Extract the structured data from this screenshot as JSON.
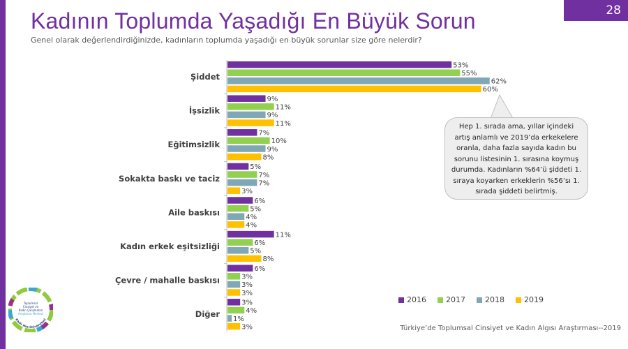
{
  "page_number": "28",
  "title": "Kadının Toplumda Yaşadığı En Büyük Sorun",
  "subtitle": "Genel olarak değerlendirdiğinizde, kadınların toplumda yaşadığı en büyük sorunlar size göre nelerdir?",
  "callout_text": "Hep 1. sırada ama, yıllar içindeki artış anlamlı ve 2019’da erkekelere oranla, daha fazla sayıda kadın bu sorunu listesinin 1. sırasına koymuş durumda. Kadınların %64’ü şiddeti 1. sıraya koyarken erkeklerin %56’sı 1. sırada şiddeti belirtmiş.",
  "source": "Türkiye’de Toplumsal Cinsiyet ve Kadın Algısı Araştırması--2019",
  "logo": {
    "text_lines": [
      "Toplumsal",
      "Cinsiyet ve",
      "Kadın Çalışmaları",
      "Araştırma Merkezi"
    ],
    "ring_text": "Kadir Has Üniversitesi"
  },
  "colors": {
    "accent": "#7030a0",
    "series": [
      "#7030a0",
      "#92d050",
      "#7fa7b5",
      "#ffc000"
    ]
  },
  "chart_data": {
    "type": "bar",
    "orientation": "horizontal",
    "categories": [
      "Şiddet",
      "İşsizlik",
      "Eğitimsizlik",
      "Sokakta baskı ve taciz",
      "Aile baskısı",
      "Kadın erkek eşitsizliği",
      "Çevre / mahalle baskısı",
      "Diğer"
    ],
    "series": [
      {
        "name": "2016",
        "values": [
          53,
          9,
          7,
          5,
          6,
          11,
          6,
          3
        ]
      },
      {
        "name": "2017",
        "values": [
          55,
          11,
          10,
          7,
          5,
          6,
          3,
          4
        ]
      },
      {
        "name": "2018",
        "values": [
          62,
          9,
          9,
          7,
          4,
          5,
          3,
          1
        ]
      },
      {
        "name": "2019",
        "values": [
          60,
          11,
          8,
          3,
          4,
          8,
          3,
          3
        ]
      }
    ],
    "value_suffix": "%",
    "legend_position": "bottom-right",
    "grid": false
  }
}
